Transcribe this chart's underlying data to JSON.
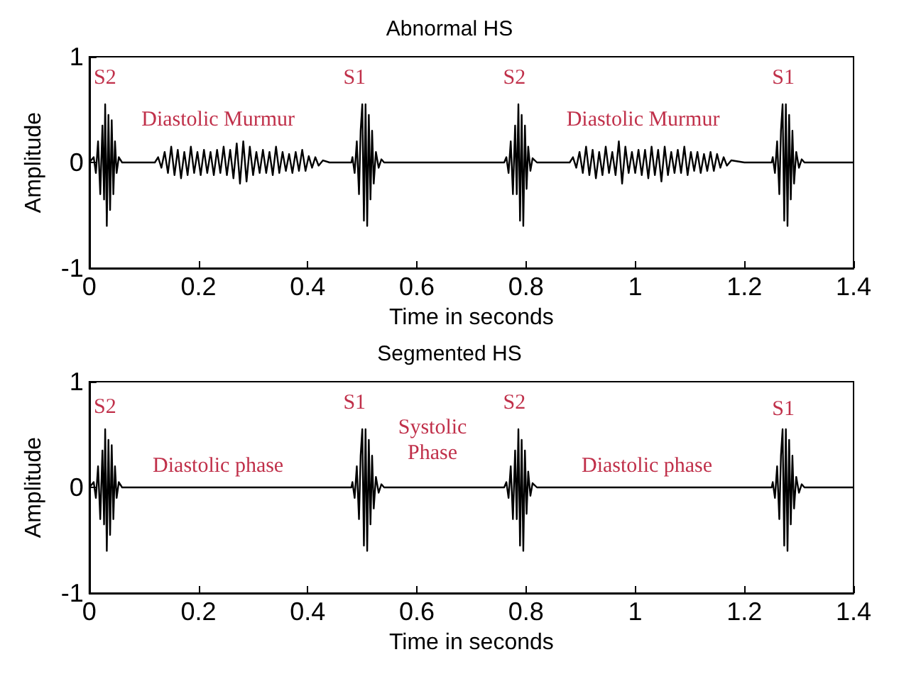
{
  "chart_data": [
    {
      "type": "line",
      "title": "Abnormal HS",
      "xlabel": "Time in seconds",
      "ylabel": "Amplitude",
      "xlim": [
        0,
        1.4
      ],
      "ylim": [
        -1,
        1
      ],
      "xticks": [
        0,
        0.2,
        0.4,
        0.6,
        0.8,
        1,
        1.2,
        1.4
      ],
      "yticks": [
        -1,
        0,
        1
      ],
      "grid": false,
      "marker": "none",
      "line_style": "solid",
      "annotations": [
        "S2",
        "Diastolic Murmur",
        "S1",
        "S2",
        "Diastolic Murmur",
        "S1"
      ],
      "series": [
        {
          "color": "#000000",
          "x": [
            0,
            0.008,
            0.012,
            0.016,
            0.02,
            0.024,
            0.027,
            0.029,
            0.032,
            0.035,
            0.038,
            0.041,
            0.044,
            0.047,
            0.05,
            0.054,
            0.06,
            0.12,
            0.126,
            0.132,
            0.138,
            0.144,
            0.15,
            0.156,
            0.162,
            0.168,
            0.174,
            0.18,
            0.186,
            0.192,
            0.198,
            0.204,
            0.21,
            0.216,
            0.222,
            0.228,
            0.234,
            0.24,
            0.246,
            0.252,
            0.258,
            0.264,
            0.27,
            0.276,
            0.282,
            0.288,
            0.294,
            0.3,
            0.306,
            0.312,
            0.318,
            0.324,
            0.33,
            0.336,
            0.342,
            0.348,
            0.354,
            0.36,
            0.366,
            0.372,
            0.378,
            0.384,
            0.39,
            0.396,
            0.402,
            0.408,
            0.414,
            0.42,
            0.428,
            0.44,
            0.48,
            0.482,
            0.486,
            0.49,
            0.494,
            0.497,
            0.5,
            0.503,
            0.506,
            0.509,
            0.512,
            0.515,
            0.518,
            0.521,
            0.525,
            0.53,
            0.535,
            0.54,
            0.76,
            0.764,
            0.768,
            0.772,
            0.776,
            0.78,
            0.783,
            0.786,
            0.789,
            0.792,
            0.795,
            0.798,
            0.801,
            0.804,
            0.808,
            0.812,
            0.82,
            0.88,
            0.886,
            0.892,
            0.898,
            0.904,
            0.91,
            0.916,
            0.922,
            0.928,
            0.934,
            0.94,
            0.946,
            0.952,
            0.958,
            0.964,
            0.97,
            0.976,
            0.982,
            0.988,
            0.994,
            1.0,
            1.006,
            1.012,
            1.018,
            1.024,
            1.03,
            1.036,
            1.042,
            1.048,
            1.054,
            1.06,
            1.066,
            1.072,
            1.078,
            1.084,
            1.09,
            1.096,
            1.102,
            1.108,
            1.114,
            1.12,
            1.126,
            1.132,
            1.138,
            1.144,
            1.15,
            1.156,
            1.162,
            1.168,
            1.176,
            1.2,
            1.25,
            1.252,
            1.256,
            1.26,
            1.264,
            1.267,
            1.27,
            1.273,
            1.276,
            1.279,
            1.282,
            1.285,
            1.288,
            1.291,
            1.295,
            1.3,
            1.305,
            1.31,
            1.4
          ],
          "values": [
            0,
            0.05,
            -0.1,
            0.2,
            -0.3,
            0.35,
            -0.35,
            0.55,
            -0.6,
            0.45,
            -0.45,
            0.4,
            -0.3,
            0.2,
            -0.1,
            0.05,
            0,
            0,
            0.05,
            -0.05,
            0.1,
            -0.1,
            0.15,
            -0.12,
            0.12,
            -0.15,
            0.1,
            -0.12,
            0.15,
            -0.1,
            0.1,
            -0.12,
            0.12,
            -0.1,
            0.1,
            -0.12,
            0.12,
            -0.1,
            0.15,
            -0.12,
            0.12,
            -0.15,
            0.18,
            -0.2,
            0.2,
            -0.18,
            0.15,
            -0.12,
            0.1,
            -0.1,
            0.12,
            -0.1,
            0.1,
            -0.12,
            0.15,
            -0.1,
            0.1,
            -0.08,
            0.08,
            -0.1,
            0.1,
            -0.08,
            0.12,
            -0.08,
            0.06,
            -0.05,
            0.05,
            -0.03,
            0.02,
            0,
            0,
            0.05,
            -0.1,
            0.2,
            -0.3,
            0.3,
            0.55,
            -0.55,
            0.55,
            -0.6,
            0.45,
            -0.35,
            0.3,
            -0.2,
            0.1,
            -0.05,
            0.03,
            0,
            0,
            0.05,
            -0.1,
            0.2,
            -0.3,
            0.35,
            -0.3,
            0.55,
            -0.55,
            0.45,
            -0.6,
            0.35,
            -0.25,
            0.15,
            -0.08,
            0.04,
            0,
            0,
            0.05,
            -0.05,
            0.1,
            -0.1,
            0.15,
            -0.12,
            0.12,
            -0.15,
            0.1,
            -0.12,
            0.15,
            -0.1,
            0.1,
            -0.12,
            0.2,
            -0.2,
            0.15,
            -0.1,
            0.1,
            -0.1,
            0.12,
            -0.12,
            0.12,
            -0.15,
            0.15,
            -0.12,
            0.12,
            -0.18,
            0.15,
            -0.12,
            0.1,
            -0.1,
            0.12,
            -0.1,
            0.15,
            -0.12,
            0.1,
            -0.08,
            0.1,
            -0.1,
            0.08,
            -0.08,
            0.1,
            -0.08,
            0.08,
            -0.05,
            0.05,
            -0.03,
            0.02,
            0,
            0,
            0.05,
            -0.1,
            0.2,
            -0.3,
            0.3,
            0.55,
            -0.55,
            0.55,
            -0.6,
            0.45,
            -0.35,
            0.3,
            -0.2,
            0.1,
            -0.05,
            0.03,
            0,
            0
          ]
        }
      ]
    },
    {
      "type": "line",
      "title": "Segmented HS",
      "xlabel": "Time in seconds",
      "ylabel": "Amplitude",
      "xlim": [
        0,
        1.4
      ],
      "ylim": [
        -1,
        1
      ],
      "xticks": [
        0,
        0.2,
        0.4,
        0.6,
        0.8,
        1,
        1.2,
        1.4
      ],
      "yticks": [
        -1,
        0,
        1
      ],
      "grid": false,
      "marker": "none",
      "line_style": "solid",
      "annotations": [
        "S2",
        "Diastolic phase",
        "S1",
        "Systolic\nPhase",
        "S2",
        "Diastolic phase",
        "S1"
      ],
      "series": [
        {
          "color": "#000000",
          "x": [
            0,
            0.008,
            0.012,
            0.016,
            0.02,
            0.024,
            0.027,
            0.029,
            0.032,
            0.035,
            0.038,
            0.041,
            0.044,
            0.047,
            0.05,
            0.054,
            0.06,
            0.48,
            0.482,
            0.486,
            0.49,
            0.494,
            0.497,
            0.5,
            0.503,
            0.506,
            0.509,
            0.512,
            0.515,
            0.518,
            0.521,
            0.525,
            0.53,
            0.535,
            0.54,
            0.76,
            0.764,
            0.768,
            0.772,
            0.776,
            0.78,
            0.783,
            0.786,
            0.789,
            0.792,
            0.795,
            0.798,
            0.801,
            0.804,
            0.808,
            0.812,
            0.82,
            1.25,
            1.252,
            1.256,
            1.26,
            1.264,
            1.267,
            1.27,
            1.273,
            1.276,
            1.279,
            1.282,
            1.285,
            1.288,
            1.291,
            1.295,
            1.3,
            1.305,
            1.31,
            1.4
          ],
          "values": [
            0,
            0.05,
            -0.1,
            0.2,
            -0.3,
            0.35,
            -0.35,
            0.55,
            -0.6,
            0.45,
            -0.45,
            0.4,
            -0.3,
            0.2,
            -0.1,
            0.05,
            0,
            0,
            0.05,
            -0.1,
            0.2,
            -0.3,
            0.3,
            0.55,
            -0.55,
            0.55,
            -0.6,
            0.45,
            -0.35,
            0.3,
            -0.2,
            0.1,
            -0.05,
            0.03,
            0,
            0,
            0.05,
            -0.1,
            0.2,
            -0.3,
            0.35,
            -0.3,
            0.55,
            -0.55,
            0.45,
            -0.6,
            0.35,
            -0.25,
            0.15,
            -0.08,
            0.04,
            0,
            0,
            0.05,
            -0.1,
            0.2,
            -0.3,
            0.3,
            0.55,
            -0.55,
            0.55,
            -0.6,
            0.45,
            -0.35,
            0.3,
            -0.2,
            0.1,
            -0.05,
            0.03,
            0,
            0
          ]
        }
      ]
    }
  ]
}
